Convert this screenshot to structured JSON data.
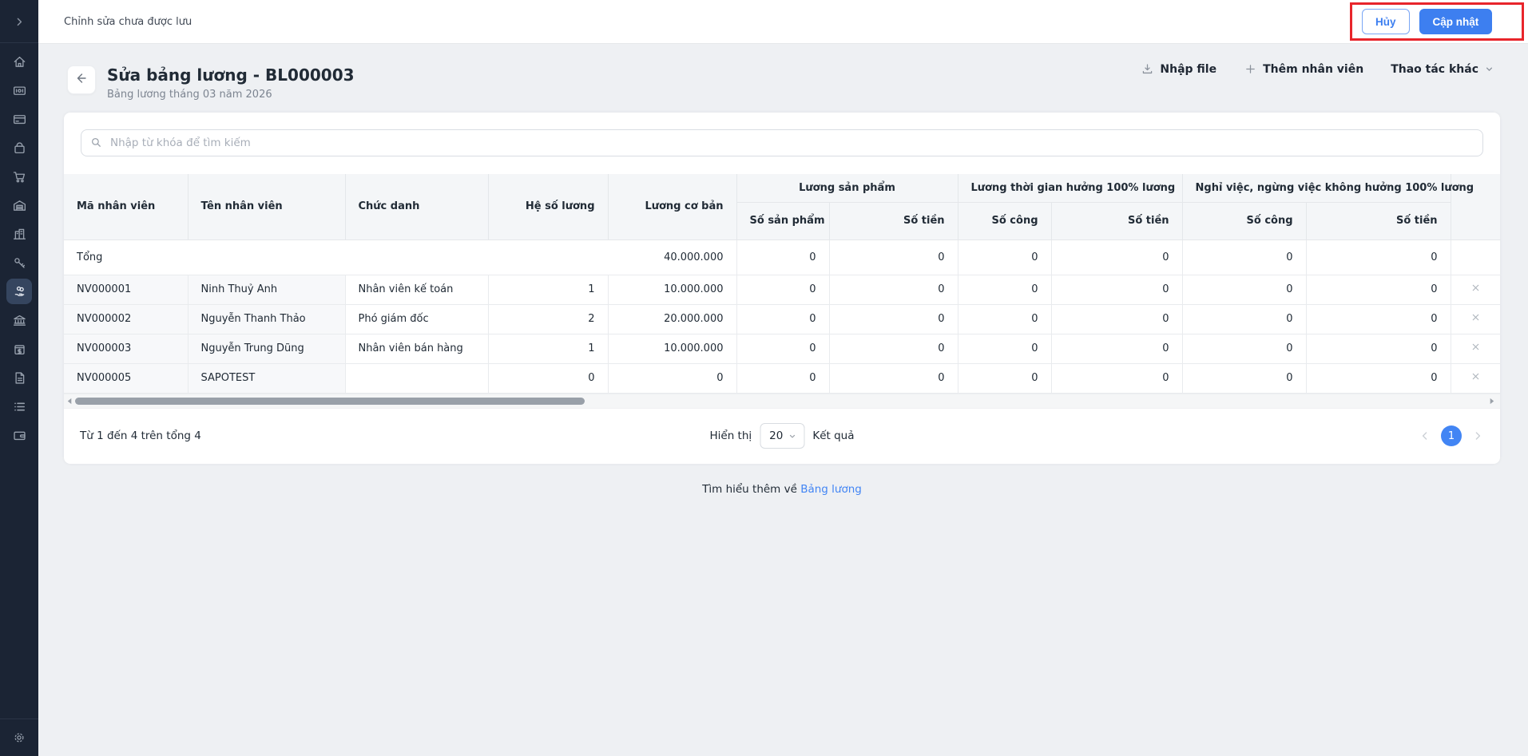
{
  "topbar": {
    "status_text": "Chỉnh sửa chưa được lưu",
    "cancel_label": "Hủy",
    "update_label": "Cập nhật"
  },
  "annotation": {
    "highlight_color": "#e8252b"
  },
  "header": {
    "title": "Sửa bảng lương - BL000003",
    "subtitle": "Bảng lương tháng 03 năm 2026",
    "import_label": "Nhập file",
    "add_employee_label": "Thêm nhân viên",
    "more_actions_label": "Thao tác khác"
  },
  "search": {
    "placeholder": "Nhập từ khóa để tìm kiếm"
  },
  "table": {
    "columns": {
      "employee_code": "Mã nhân viên",
      "employee_name": "Tên nhân viên",
      "job_title": "Chức danh",
      "salary_coefficient": "Hệ số lương",
      "base_salary": "Lương cơ bản"
    },
    "groups": [
      {
        "label": "Lương sản phẩm",
        "sub": [
          "Số sản phẩm",
          "Số tiền"
        ]
      },
      {
        "label": "Lương thời gian hưởng 100% lương",
        "sub": [
          "Số công",
          "Số tiền"
        ]
      },
      {
        "label": "Nghỉ việc, ngừng việc không hưởng 100% lương",
        "sub": [
          "Số công",
          "Số tiền"
        ]
      }
    ],
    "total_row": {
      "label": "Tổng",
      "coefficient": "",
      "base_salary": "40.000.000",
      "values": [
        "0",
        "0",
        "0",
        "0",
        "0",
        "0"
      ]
    },
    "rows": [
      {
        "code": "NV000001",
        "name": "Ninh Thuỷ Anh",
        "title": "Nhân viên kế toán",
        "coefficient": "1",
        "base_salary": "10.000.000",
        "values": [
          "0",
          "0",
          "0",
          "0",
          "0",
          "0"
        ]
      },
      {
        "code": "NV000002",
        "name": "Nguyễn Thanh Thảo",
        "title": "Phó giám đốc",
        "coefficient": "2",
        "base_salary": "20.000.000",
        "values": [
          "0",
          "0",
          "0",
          "0",
          "0",
          "0"
        ]
      },
      {
        "code": "NV000003",
        "name": "Nguyễn Trung Dũng",
        "title": "Nhân viên bán hàng",
        "coefficient": "1",
        "base_salary": "10.000.000",
        "values": [
          "0",
          "0",
          "0",
          "0",
          "0",
          "0"
        ]
      },
      {
        "code": "NV000005",
        "name": "SAPOTEST",
        "title": "",
        "coefficient": "0",
        "base_salary": "0",
        "values": [
          "0",
          "0",
          "0",
          "0",
          "0",
          "0"
        ]
      }
    ]
  },
  "footer": {
    "range_text": "Từ 1 đến 4 trên tổng 4",
    "page_size_label": "Hiển thị",
    "page_size": "20",
    "results_label": "Kết quả",
    "current_page": "1"
  },
  "learn_more": {
    "prefix": "Tìm hiểu thêm về",
    "link_label": "Bảng lương"
  },
  "sidebar": {
    "items": [
      {
        "name": "sidebar-item-home",
        "icon": "home-icon",
        "active": false
      },
      {
        "name": "sidebar-item-pos",
        "icon": "invoice-icon",
        "active": false
      },
      {
        "name": "sidebar-item-orders",
        "icon": "card-icon",
        "active": false
      },
      {
        "name": "sidebar-item-products",
        "icon": "bag-icon",
        "active": false
      },
      {
        "name": "sidebar-item-purchase",
        "icon": "cart-icon",
        "active": false
      },
      {
        "name": "sidebar-item-inventory",
        "icon": "warehouse-icon",
        "active": false
      },
      {
        "name": "sidebar-item-company",
        "icon": "building-icon",
        "active": false
      },
      {
        "name": "sidebar-item-promotion",
        "icon": "key-icon",
        "active": false
      },
      {
        "name": "sidebar-item-payroll",
        "icon": "payroll-icon",
        "active": true
      },
      {
        "name": "sidebar-item-finance",
        "icon": "bank-icon",
        "active": false
      },
      {
        "name": "sidebar-item-cashbook",
        "icon": "cashbox-icon",
        "active": false
      },
      {
        "name": "sidebar-item-documents",
        "icon": "document-icon",
        "active": false
      },
      {
        "name": "sidebar-item-reports",
        "icon": "list-icon",
        "active": false
      },
      {
        "name": "sidebar-item-wallet",
        "icon": "wallet-icon",
        "active": false
      }
    ]
  },
  "colors": {
    "primary": "#3d7ff0",
    "link": "#4285f4",
    "annotation_red": "#e8252b",
    "sidebar_bg": "#1b2434",
    "sidebar_active_bg": "#35455f"
  }
}
